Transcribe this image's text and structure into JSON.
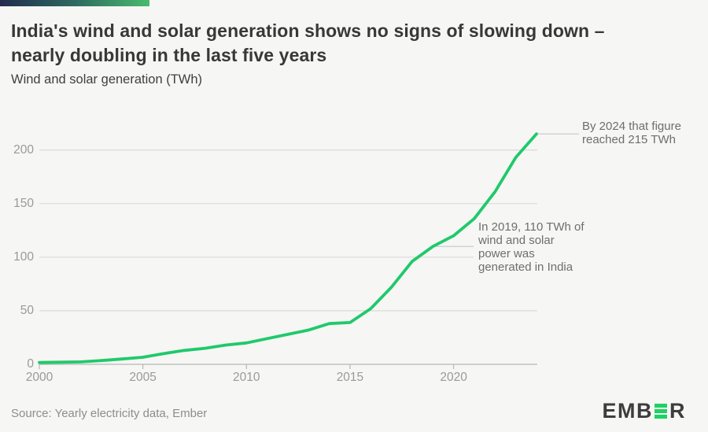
{
  "page": {
    "background": "#f6f6f4"
  },
  "header": {
    "title_line1": "India's wind and solar generation shows no signs of slowing down –",
    "title_line2": "nearly doubling in the last five years",
    "subtitle": "Wind and solar generation (TWh)"
  },
  "chart_data": {
    "type": "line",
    "title": "Wind and solar generation (TWh)",
    "xlabel": "",
    "ylabel": "TWh",
    "x": [
      2000,
      2001,
      2002,
      2003,
      2004,
      2005,
      2006,
      2007,
      2008,
      2009,
      2010,
      2011,
      2012,
      2013,
      2014,
      2015,
      2016,
      2017,
      2018,
      2019,
      2020,
      2021,
      2022,
      2023,
      2024
    ],
    "series": [
      {
        "name": "Wind and solar generation (TWh)",
        "values": [
          1.7,
          2.0,
          2.3,
          3.5,
          5.0,
          6.6,
          10,
          13,
          15,
          18,
          20,
          24,
          28,
          32,
          38,
          39,
          52,
          72,
          96,
          110,
          120,
          136,
          161,
          193,
          215
        ]
      }
    ],
    "x_ticks": [
      2000,
      2005,
      2010,
      2015,
      2020
    ],
    "y_ticks": [
      0,
      50,
      100,
      150,
      200
    ],
    "x_range": [
      2000,
      2024
    ],
    "y_range": [
      0,
      220
    ],
    "grid": "horizontal",
    "legend": "none",
    "line_color": "#20c96c"
  },
  "annotations": [
    {
      "name": "2024-annotation",
      "lines": [
        "By 2024 that figure",
        "reached 215 TWh"
      ],
      "target_year": 2024,
      "target_value": 215
    },
    {
      "name": "2019-annotation",
      "lines": [
        "In 2019, 110 TWh of",
        "wind and solar",
        "power was",
        "generated in India"
      ],
      "target_year": 2019,
      "target_value": 110
    }
  ],
  "footer": {
    "source": "Source: Yearly electricity data, Ember"
  },
  "logo": {
    "left": "EMB",
    "right": "R"
  },
  "colors": {
    "accent_green": "#20c96c",
    "logo_green": "#1dd263",
    "gradient_start": "#222c4e",
    "gradient_end": "#4aba6e",
    "gridline": "#dadad8",
    "axis": "#b6b6b4",
    "leader": "#c7c7c5"
  }
}
